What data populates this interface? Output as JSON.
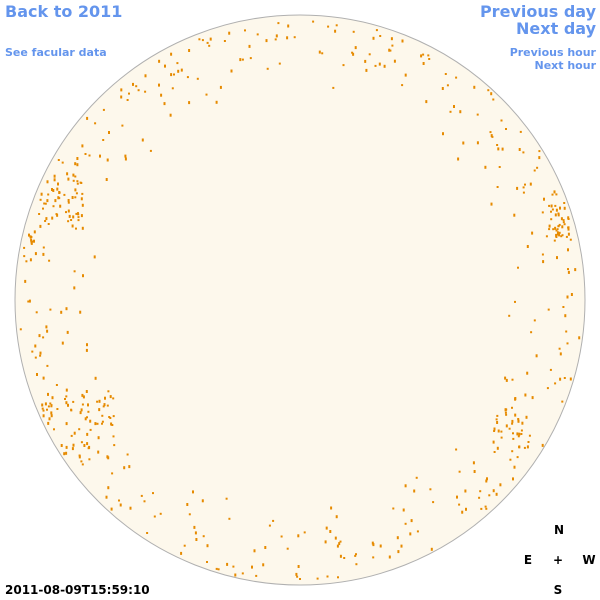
{
  "links": {
    "back": "Back to 2011",
    "facular": "See facular data",
    "prev_day": "Previous day",
    "next_day": "Next day",
    "prev_hour": "Previous hour",
    "next_hour": "Next hour"
  },
  "timestamp": "2011-08-09T15:59:10",
  "compass": {
    "north": "N",
    "east": "E",
    "center": "+",
    "west": "W",
    "south": "S"
  }
}
